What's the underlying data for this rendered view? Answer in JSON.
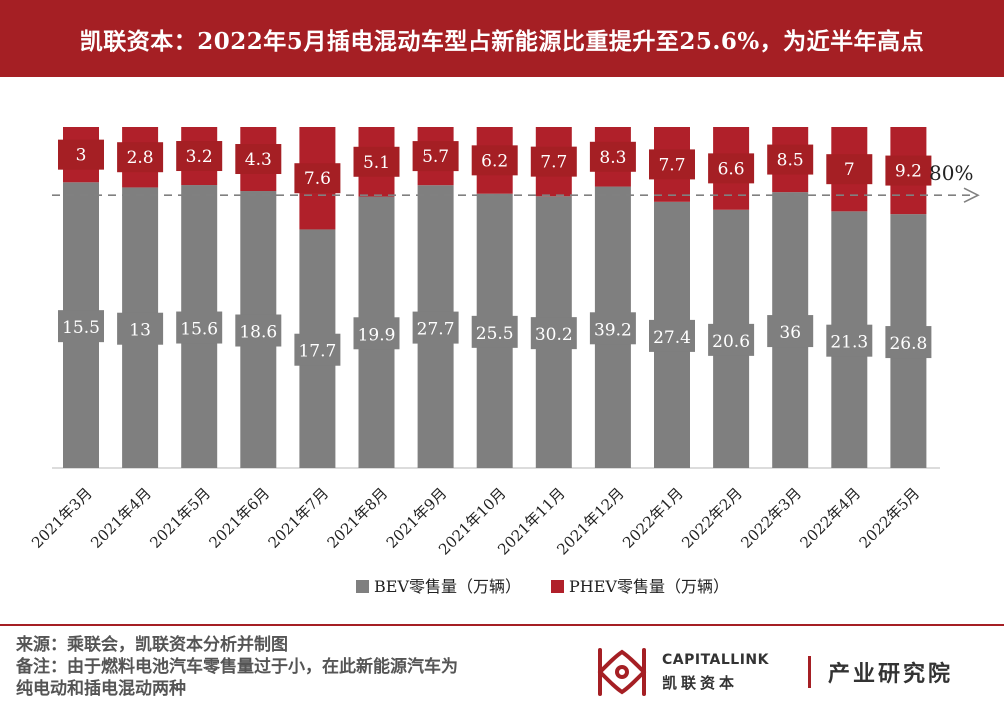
{
  "header": {
    "title": "凯联资本：2022年5月插电混动车型占新能源比重提升至25.6%，为近半年高点"
  },
  "chart_data": {
    "type": "bar",
    "stacked": "percent",
    "categories": [
      "2021年3月",
      "2021年4月",
      "2021年5月",
      "2021年6月",
      "2021年7月",
      "2021年8月",
      "2021年9月",
      "2021年10月",
      "2021年11月",
      "2021年12月",
      "2022年1月",
      "2022年2月",
      "2022年3月",
      "2022年4月",
      "2022年5月"
    ],
    "series": [
      {
        "name": "BEV零售量（万辆）",
        "color": "#7f7f7f",
        "values": [
          15.5,
          13,
          15.6,
          18.6,
          17.7,
          19.9,
          27.7,
          25.5,
          30.2,
          39.2,
          27.4,
          20.6,
          36,
          21.3,
          26.8
        ]
      },
      {
        "name": "PHEV零售量（万辆）",
        "color": "#b0202a",
        "values": [
          3,
          2.8,
          3.2,
          4.3,
          7.6,
          5.1,
          5.7,
          6.2,
          7.7,
          8.3,
          7.7,
          6.6,
          8.5,
          7,
          9.2
        ]
      }
    ],
    "reference_line": {
      "value": 80,
      "label": "80%",
      "style": "dashed-arrow"
    },
    "ylim": [
      0,
      100
    ],
    "legend": "bottom"
  },
  "footer": {
    "source": "来源：乘联会，凯联资本分析并制图",
    "note_line1": "备注：由于燃料电池汽车零售量过于小，在此新能源汽车为",
    "note_line2": "纯电动和插电混动两种"
  },
  "logo": {
    "name_en": "CAPITALLINK",
    "name_cn": "凯联资本",
    "institute": "产业研究院"
  }
}
